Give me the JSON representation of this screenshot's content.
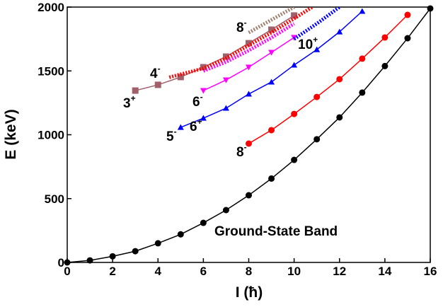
{
  "chart_data": {
    "type": "line",
    "x_label": "I (ħ)",
    "y_label": "E (keV)",
    "xlim": [
      0,
      16
    ],
    "ylim": [
      0,
      2000
    ],
    "xticks": [
      0,
      2,
      4,
      6,
      8,
      10,
      12,
      14,
      16
    ],
    "yticks": [
      0,
      500,
      1000,
      1500,
      2000
    ],
    "series": [
      {
        "color": "#000000",
        "marker": "circle",
        "dashed": false,
        "x": [
          0,
          1,
          2,
          3,
          4,
          5,
          6,
          7,
          8,
          9,
          10,
          11,
          12,
          13,
          14,
          15,
          16
        ],
        "values": [
          0,
          16,
          48,
          88,
          150,
          220,
          310,
          410,
          526,
          657,
          803,
          965,
          1136,
          1330,
          1538,
          1756,
          1989
        ]
      },
      {
        "color": "#ff0000",
        "marker": "circle",
        "dashed": false,
        "x": [
          8,
          9,
          10,
          11,
          12,
          13,
          14,
          15
        ],
        "values": [
          931,
          1036,
          1163,
          1296,
          1435,
          1596,
          1762,
          1939
        ]
      },
      {
        "color": "#0000ff",
        "marker": "triangle",
        "dashed": false,
        "x": [
          5,
          6,
          7,
          8,
          9,
          10,
          11,
          12,
          13
        ],
        "values": [
          1058,
          1130,
          1208,
          1319,
          1413,
          1546,
          1667,
          1806,
          1967
        ]
      },
      {
        "color": "#ff00ff",
        "marker": "triangle-down",
        "dashed": false,
        "x": [
          6,
          7,
          8,
          9,
          10
        ],
        "values": [
          1346,
          1429,
          1529,
          1645,
          1762
        ]
      },
      {
        "color": "#a0606a",
        "marker": "square",
        "dashed": false,
        "x": [
          3,
          4,
          5,
          6,
          7,
          8,
          9,
          10
        ],
        "values": [
          1346,
          1391,
          1452,
          1529,
          1612,
          1717,
          1823,
          1934
        ]
      },
      {
        "color": "#ff00ff",
        "marker": "none",
        "dashed": true,
        "x": [
          6,
          7,
          8,
          9,
          10
        ],
        "values": [
          1500,
          1570,
          1660,
          1760,
          1870
        ]
      },
      {
        "color": "#ff0000",
        "marker": "none",
        "dashed": true,
        "x": [
          4.5,
          6,
          7,
          8,
          9,
          10,
          10.8
        ],
        "values": [
          1450,
          1520,
          1600,
          1700,
          1800,
          1910,
          2000
        ]
      },
      {
        "color": "#0000ff",
        "marker": "none",
        "dashed": true,
        "x": [
          10,
          11,
          12
        ],
        "values": [
          1750,
          1870,
          2000
        ]
      },
      {
        "color": "#a08070",
        "marker": "none",
        "dashed": true,
        "x": [
          8,
          9,
          10
        ],
        "values": [
          1800,
          1900,
          2000
        ]
      }
    ],
    "annotations": [
      {
        "text": "3",
        "sup": "+"
      },
      {
        "text": "4",
        "sup": "-"
      },
      {
        "text": "6",
        "sup": "-"
      },
      {
        "text": "6",
        "sup": "+"
      },
      {
        "text": "5",
        "sup": "-"
      },
      {
        "text": "8",
        "sup": "-"
      },
      {
        "text": "8",
        "sup": "-"
      },
      {
        "text": "10",
        "sup": "+"
      },
      {
        "text": "Ground-State Band"
      }
    ]
  }
}
